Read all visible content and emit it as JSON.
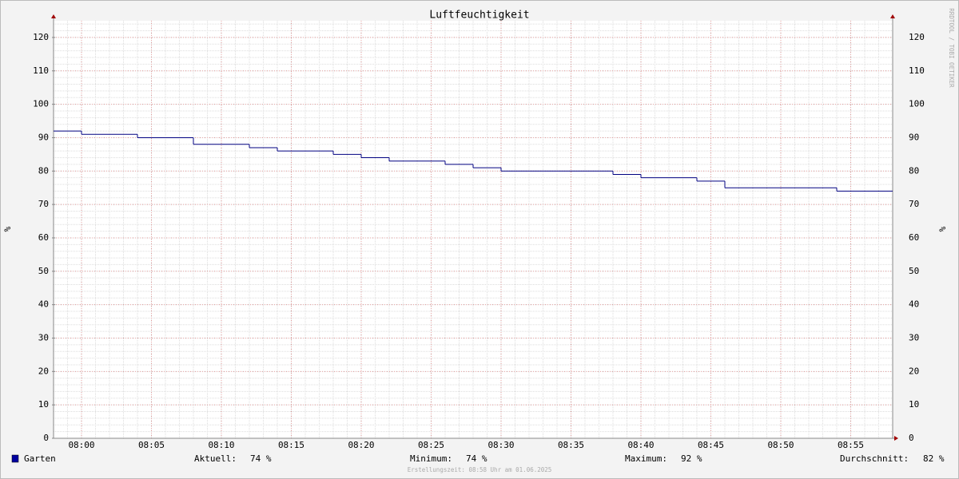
{
  "chart_data": {
    "type": "step",
    "title": "Luftfeuchtigkeit",
    "y_label": "%",
    "y2_label": "%",
    "watermark": "RRDTOOL / TOBI OETIKER",
    "footer": "Erstellungszeit: 08:58 Uhr am 01.06.2025",
    "x": [
      "07:58",
      "08:00",
      "08:02",
      "08:04",
      "08:06",
      "08:08",
      "08:10",
      "08:12",
      "08:14",
      "08:16",
      "08:18",
      "08:20",
      "08:22",
      "08:24",
      "08:26",
      "08:28",
      "08:30",
      "08:32",
      "08:34",
      "08:36",
      "08:38",
      "08:40",
      "08:42",
      "08:44",
      "08:46",
      "08:48",
      "08:50",
      "08:52",
      "08:54",
      "08:56",
      "08:58"
    ],
    "series": [
      {
        "name": "Garten",
        "color": "#000080",
        "legend_color": "#0000a0",
        "values": [
          92,
          91,
          91,
          90,
          90,
          88,
          88,
          87,
          86,
          86,
          85,
          84,
          83,
          83,
          82,
          81,
          80,
          80,
          80,
          80,
          79,
          78,
          78,
          77,
          75,
          75,
          75,
          75,
          74,
          74,
          74
        ]
      }
    ],
    "xlim": [
      "07:58",
      "08:58"
    ],
    "xticks": [
      "08:00",
      "08:05",
      "08:10",
      "08:15",
      "08:20",
      "08:25",
      "08:30",
      "08:35",
      "08:40",
      "08:45",
      "08:50",
      "08:55"
    ],
    "ylim": [
      0,
      125
    ],
    "yticks": [
      0,
      10,
      20,
      30,
      40,
      50,
      60,
      70,
      80,
      90,
      100,
      110,
      120
    ],
    "grid": true,
    "stats": [
      {
        "label": "Aktuell:",
        "value": 74,
        "value_label": "74 %"
      },
      {
        "label": "Minimum:",
        "value": 74,
        "value_label": "74 %"
      },
      {
        "label": "Maximum:",
        "value": 92,
        "value_label": "92 %"
      },
      {
        "label": "Durchschnitt:",
        "value": 82,
        "value_label": "82 %"
      }
    ]
  }
}
